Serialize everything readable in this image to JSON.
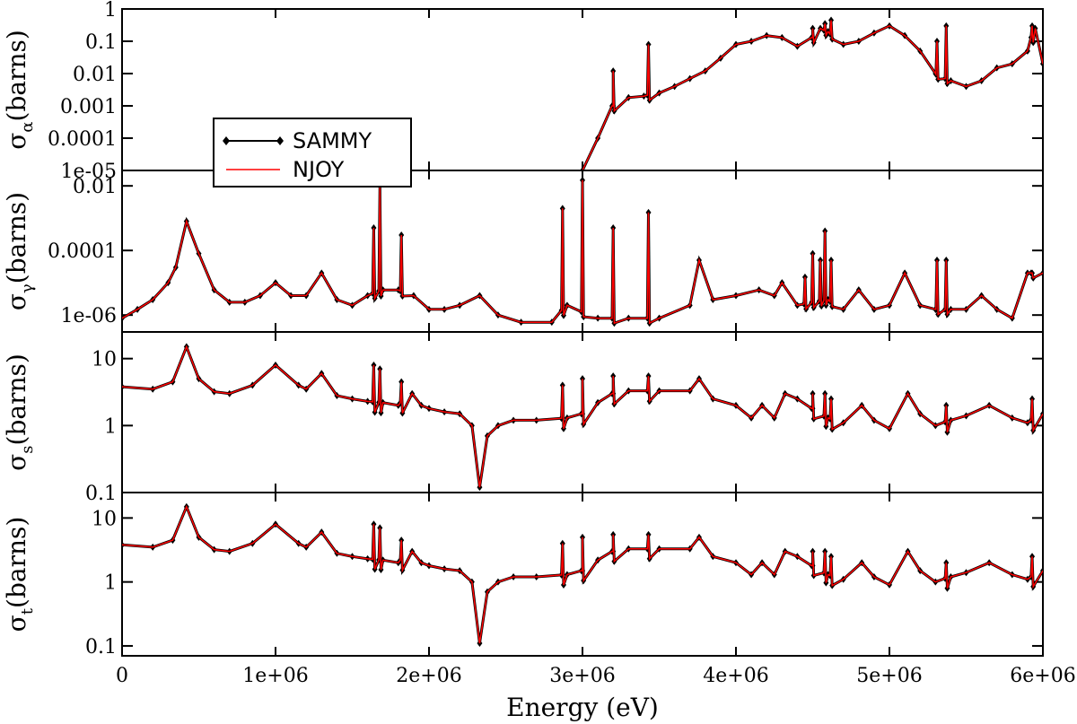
{
  "chart_data": {
    "type": "line",
    "xlabel": "Energy (eV)",
    "xlim": [
      0,
      6000000
    ],
    "xticks": [
      0,
      1000000,
      2000000,
      3000000,
      4000000,
      5000000,
      6000000
    ],
    "xtick_labels": [
      "0",
      "1e+06",
      "2e+06",
      "3e+06",
      "4e+06",
      "5e+06",
      "6e+06"
    ],
    "legend": {
      "placement": "inside top panel, left",
      "entries": [
        {
          "name": "SAMMY",
          "color": "#000000",
          "marker": "diamond"
        },
        {
          "name": "NJOY",
          "color": "#ff0000",
          "marker": "none"
        }
      ]
    },
    "panels": [
      {
        "id": "alpha",
        "ylabel_symbol": "σ",
        "ylabel_sub": "α",
        "ylabel_unit": "(barns)",
        "yscale": "log",
        "ylim": [
          1e-05,
          1
        ],
        "yticks": [
          1e-05,
          0.0001,
          0.001,
          0.01,
          0.1,
          1
        ],
        "ytick_labels": [
          "1e-05",
          "0.0001",
          "0.001",
          "0.01",
          "0.1",
          "1"
        ],
        "x": [
          3000000,
          3100000,
          3200000,
          3300000,
          3400000,
          3500000,
          3600000,
          3700000,
          3800000,
          3900000,
          4000000,
          4100000,
          4200000,
          4300000,
          4400000,
          4500000,
          4550000,
          4600000,
          4700000,
          4800000,
          4900000,
          5000000,
          5100000,
          5200000,
          5300000,
          5400000,
          5500000,
          5600000,
          5700000,
          5800000,
          5900000,
          5950000,
          6000000
        ],
        "y": [
          1e-05,
          0.0001,
          0.001,
          0.0018,
          0.002,
          0.0025,
          0.004,
          0.007,
          0.012,
          0.03,
          0.08,
          0.1,
          0.15,
          0.13,
          0.07,
          0.13,
          0.25,
          0.2,
          0.08,
          0.1,
          0.18,
          0.3,
          0.15,
          0.05,
          0.01,
          0.006,
          0.004,
          0.006,
          0.015,
          0.02,
          0.05,
          0.25,
          0.02
        ],
        "peaks": [
          [
            3200000,
            0.012
          ],
          [
            3430000,
            0.08
          ],
          [
            4500000,
            0.25
          ],
          [
            4580000,
            0.35
          ],
          [
            4620000,
            0.45
          ],
          [
            5310000,
            0.1
          ],
          [
            5370000,
            0.3
          ],
          [
            5930000,
            0.3
          ]
        ]
      },
      {
        "id": "gamma",
        "ylabel_symbol": "σ",
        "ylabel_sub": "γ",
        "ylabel_unit": "(barns)",
        "yscale": "log",
        "ylim": [
          3e-07,
          0.03
        ],
        "yticks": [
          1e-06,
          0.0001,
          0.01
        ],
        "ytick_labels": [
          "1e-06",
          "0.0001",
          "0.01"
        ],
        "x": [
          0,
          100000,
          200000,
          300000,
          350000,
          420000,
          500000,
          600000,
          700000,
          800000,
          900000,
          1000000,
          1100000,
          1200000,
          1300000,
          1400000,
          1500000,
          1600000,
          1700000,
          1800000,
          1900000,
          2000000,
          2100000,
          2200000,
          2330000,
          2450000,
          2600000,
          2800000,
          2900000,
          3100000,
          3300000,
          3500000,
          3700000,
          3760000,
          3850000,
          4000000,
          4150000,
          4250000,
          4300000,
          4400000,
          4600000,
          4700000,
          4800000,
          4900000,
          5000000,
          5100000,
          5200000,
          5300000,
          5400000,
          5500000,
          5600000,
          5700000,
          5800000,
          5900000,
          6000000
        ],
        "y": [
          8e-07,
          1.5e-06,
          3e-06,
          1e-05,
          3e-05,
          0.0008,
          8e-05,
          6e-06,
          2.5e-06,
          2.5e-06,
          4e-06,
          1e-05,
          4e-06,
          4e-06,
          2e-05,
          3e-06,
          2e-06,
          4e-06,
          6e-06,
          6e-06,
          4e-06,
          1.5e-06,
          1.5e-06,
          2e-06,
          4e-06,
          1e-06,
          6e-07,
          6e-07,
          2e-06,
          8e-07,
          8e-07,
          8e-07,
          2e-06,
          5e-05,
          3e-06,
          4e-06,
          6e-06,
          4e-06,
          1e-05,
          2e-06,
          3e-06,
          1.5e-06,
          6e-06,
          1.5e-06,
          2e-06,
          2e-05,
          2e-06,
          1.5e-06,
          1.5e-06,
          1.5e-06,
          4e-06,
          1.5e-06,
          8e-07,
          2e-05,
          2e-05
        ],
        "peaks": [
          [
            1640000,
            0.0005
          ],
          [
            1680000,
            0.01
          ],
          [
            1820000,
            0.0003
          ],
          [
            2870000,
            0.002
          ],
          [
            3000000,
            0.015
          ],
          [
            3200000,
            0.0005
          ],
          [
            3430000,
            0.0015
          ],
          [
            4450000,
            1.5e-05
          ],
          [
            4500000,
            8e-05
          ],
          [
            4550000,
            5e-05
          ],
          [
            4580000,
            0.0004
          ],
          [
            4620000,
            5e-05
          ],
          [
            5310000,
            5e-05
          ],
          [
            5370000,
            5e-05
          ],
          [
            5930000,
            2e-05
          ]
        ]
      },
      {
        "id": "s",
        "ylabel_symbol": "σ",
        "ylabel_sub": "s",
        "ylabel_unit": "(barns)",
        "yscale": "log",
        "ylim": [
          0.1,
          25
        ],
        "yticks": [
          0.1,
          1,
          10
        ],
        "ytick_labels": [
          "0.1",
          "1",
          "10"
        ],
        "x": [
          0,
          200000,
          330000,
          420000,
          500000,
          600000,
          700000,
          850000,
          1000000,
          1150000,
          1200000,
          1300000,
          1400000,
          1500000,
          1600000,
          1700000,
          1800000,
          1890000,
          1950000,
          2000000,
          2100000,
          2200000,
          2280000,
          2330000,
          2380000,
          2450000,
          2550000,
          2700000,
          2900000,
          3000000,
          3100000,
          3200000,
          3300000,
          3500000,
          3700000,
          3760000,
          3850000,
          4000000,
          4100000,
          4170000,
          4250000,
          4320000,
          4400000,
          4500000,
          4600000,
          4700000,
          4820000,
          4900000,
          5000000,
          5120000,
          5200000,
          5300000,
          5400000,
          5500000,
          5650000,
          5800000,
          5900000,
          6000000
        ],
        "y": [
          3.8,
          3.5,
          4.5,
          15,
          5,
          3.2,
          3,
          4,
          8,
          4,
          3.5,
          6,
          2.8,
          2.5,
          2.3,
          2.2,
          2.0,
          3.0,
          2.0,
          1.8,
          1.6,
          1.5,
          1.0,
          0.12,
          0.7,
          1.0,
          1.2,
          1.2,
          1.3,
          1.5,
          2.2,
          3.0,
          3.3,
          3.3,
          3.3,
          5.0,
          2.5,
          2.0,
          1.3,
          2.0,
          1.3,
          3.0,
          2.5,
          1.8,
          1.3,
          1.1,
          2.0,
          1.2,
          0.9,
          3.0,
          1.5,
          1.0,
          1.2,
          1.4,
          2.0,
          1.3,
          1.1,
          1.5
        ],
        "peaks": [
          [
            1640000,
            8
          ],
          [
            1680000,
            7
          ],
          [
            1820000,
            4.5
          ],
          [
            2870000,
            4.0
          ],
          [
            3000000,
            5.0
          ],
          [
            3200000,
            5.5
          ],
          [
            3430000,
            5.5
          ],
          [
            4500000,
            3.0
          ],
          [
            4580000,
            3.0
          ],
          [
            4620000,
            2.5
          ],
          [
            5370000,
            2.0
          ],
          [
            5930000,
            2.5
          ]
        ]
      },
      {
        "id": "t",
        "ylabel_symbol": "σ",
        "ylabel_sub": "t",
        "ylabel_unit": "(barns)",
        "yscale": "log",
        "ylim": [
          0.07,
          25
        ],
        "yticks": [
          0.1,
          1,
          10
        ],
        "ytick_labels": [
          "0.1",
          "1",
          "10"
        ],
        "x": [
          0,
          200000,
          330000,
          420000,
          500000,
          600000,
          700000,
          850000,
          1000000,
          1150000,
          1200000,
          1300000,
          1400000,
          1500000,
          1600000,
          1700000,
          1800000,
          1890000,
          1950000,
          2000000,
          2100000,
          2200000,
          2280000,
          2330000,
          2380000,
          2450000,
          2550000,
          2700000,
          2900000,
          3000000,
          3100000,
          3200000,
          3300000,
          3500000,
          3700000,
          3760000,
          3850000,
          4000000,
          4100000,
          4170000,
          4250000,
          4320000,
          4400000,
          4500000,
          4600000,
          4700000,
          4820000,
          4900000,
          5000000,
          5120000,
          5200000,
          5300000,
          5400000,
          5500000,
          5650000,
          5800000,
          5900000,
          6000000
        ],
        "y": [
          3.8,
          3.5,
          4.5,
          15,
          5,
          3.2,
          3,
          4,
          8,
          4,
          3.5,
          6,
          2.8,
          2.5,
          2.3,
          2.2,
          2.0,
          3.0,
          2.0,
          1.8,
          1.6,
          1.5,
          1.0,
          0.11,
          0.7,
          1.0,
          1.2,
          1.2,
          1.3,
          1.5,
          2.2,
          3.0,
          3.3,
          3.3,
          3.3,
          5.0,
          2.5,
          2.0,
          1.3,
          2.0,
          1.3,
          3.0,
          2.5,
          1.8,
          1.3,
          1.1,
          2.0,
          1.2,
          0.9,
          3.0,
          1.5,
          1.0,
          1.2,
          1.4,
          2.0,
          1.3,
          1.1,
          1.5
        ],
        "peaks": [
          [
            1640000,
            8
          ],
          [
            1680000,
            7
          ],
          [
            1820000,
            4.5
          ],
          [
            2870000,
            4.0
          ],
          [
            3000000,
            5.0
          ],
          [
            3200000,
            5.5
          ],
          [
            3430000,
            5.5
          ],
          [
            4500000,
            3.0
          ],
          [
            4580000,
            3.0
          ],
          [
            4620000,
            2.5
          ],
          [
            5370000,
            2.0
          ],
          [
            5930000,
            2.5
          ]
        ]
      }
    ]
  }
}
